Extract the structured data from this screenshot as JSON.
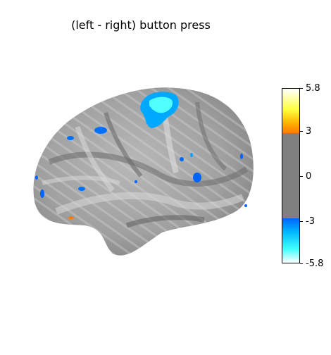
{
  "title": "(left - right) button press",
  "colorbar": {
    "ticks": [
      "5.8",
      "3",
      "0",
      "-3",
      "-5.8"
    ],
    "colors": {
      "max": "#ffffff",
      "positive": "#ffb000",
      "threshold_pos": "#ff7a00",
      "neutral": "#808080",
      "threshold_neg": "#0064ff",
      "negative": "#40ffff",
      "min": "#ffffff"
    }
  },
  "image_content": "lateral inflated brain surface with activation clusters"
}
